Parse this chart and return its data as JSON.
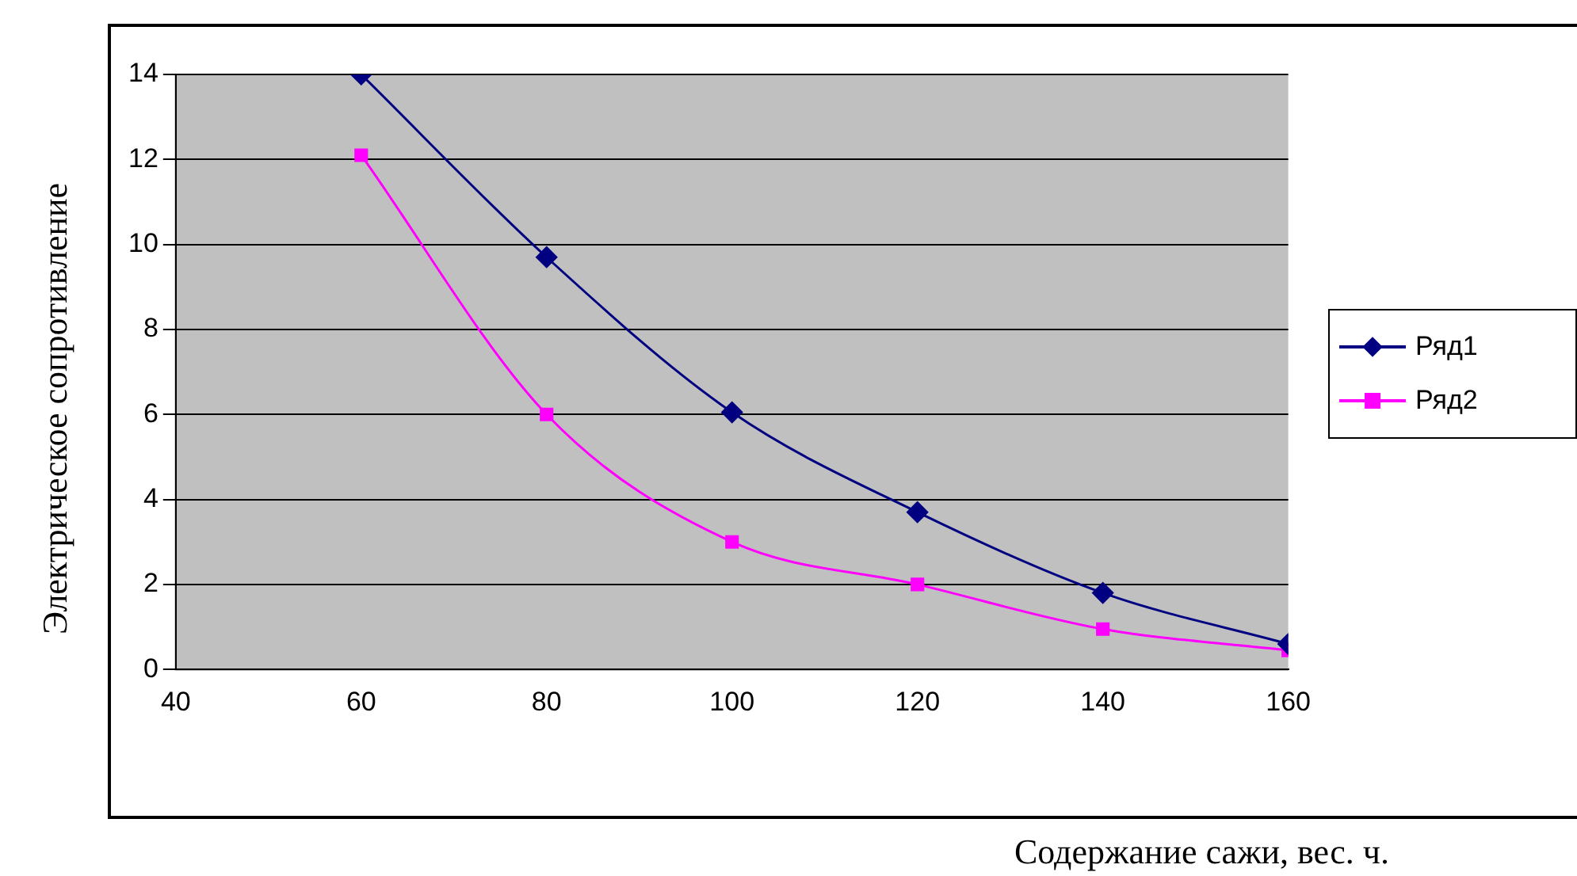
{
  "chart_data": {
    "type": "line",
    "xlabel": "Содержание сажи, вес. ч.",
    "ylabel": "Электрическое сопротивление",
    "x": [
      60,
      80,
      100,
      120,
      140,
      160
    ],
    "xlim": [
      40,
      160
    ],
    "xticks": [
      40,
      60,
      80,
      100,
      120,
      140,
      160
    ],
    "ylim": [
      0,
      14
    ],
    "yticks": [
      0,
      2,
      4,
      6,
      8,
      10,
      12,
      14
    ],
    "grid": "y",
    "legend": "right",
    "series": [
      {
        "name": "Ряд1",
        "color": "#000080",
        "marker": "diamond",
        "values": [
          14,
          9.7,
          6.05,
          3.7,
          1.8,
          0.6
        ]
      },
      {
        "name": "Ряд2",
        "color": "#ff00ff",
        "marker": "square",
        "values": [
          12.1,
          6,
          3,
          2,
          0.95,
          0.45
        ]
      }
    ]
  }
}
